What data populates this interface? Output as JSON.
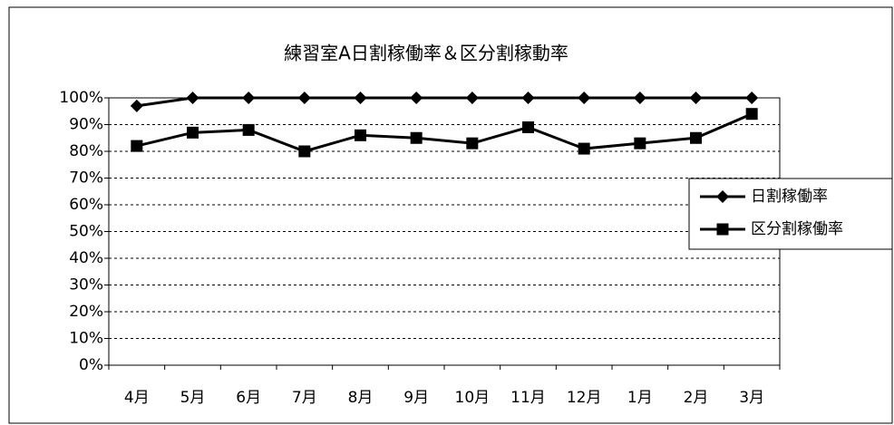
{
  "chart_data": {
    "type": "line",
    "title": "練習室A日割稼働率＆区分割稼動率",
    "categories": [
      "4月",
      "5月",
      "6月",
      "7月",
      "8月",
      "9月",
      "10月",
      "11月",
      "12月",
      "1月",
      "2月",
      "3月"
    ],
    "series": [
      {
        "name": "日割稼働率",
        "color": "#000000",
        "marker": "diamond",
        "values": [
          97,
          100,
          100,
          100,
          100,
          100,
          100,
          100,
          100,
          100,
          100,
          100
        ]
      },
      {
        "name": "区分割稼働率",
        "color": "#000000",
        "marker": "square",
        "values": [
          82,
          87,
          88,
          80,
          86,
          85,
          83,
          89,
          81,
          83,
          85,
          94
        ]
      }
    ],
    "ylim": [
      0,
      100
    ],
    "yticks": [
      {
        "value": 0,
        "label": "0%"
      },
      {
        "value": 10,
        "label": "10%"
      },
      {
        "value": 20,
        "label": "20%"
      },
      {
        "value": 30,
        "label": "30%"
      },
      {
        "value": 40,
        "label": "40%"
      },
      {
        "value": 50,
        "label": "50%"
      },
      {
        "value": 60,
        "label": "60%"
      },
      {
        "value": 70,
        "label": "70%"
      },
      {
        "value": 80,
        "label": "80%"
      },
      {
        "value": 90,
        "label": "90%"
      },
      {
        "value": 100,
        "label": "100%"
      }
    ],
    "grid": true,
    "legend": "right"
  }
}
